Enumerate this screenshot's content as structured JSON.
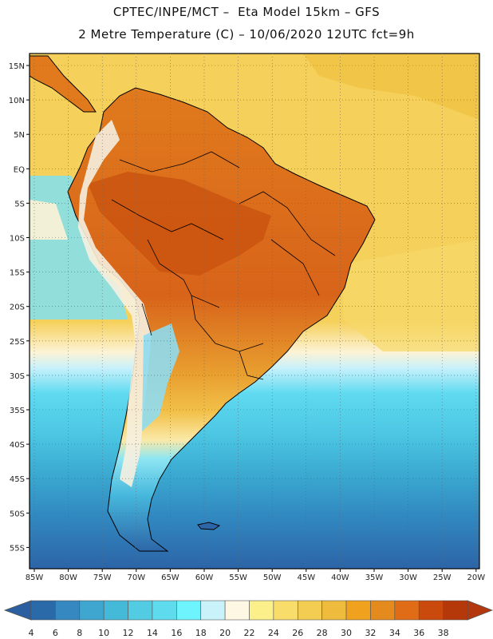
{
  "header": {
    "line1": "CPTEC/INPE/MCT –  Eta Model 15km – GFS",
    "line2": "2 Metre Temperature (C) – 10/06/2020 12UTC fct=9h"
  },
  "map": {
    "lat_labels": [
      "15N",
      "10N",
      "5N",
      "EQ",
      "5S",
      "10S",
      "15S",
      "20S",
      "25S",
      "30S",
      "35S",
      "40S",
      "45S",
      "50S",
      "55S"
    ],
    "lon_labels": [
      "85W",
      "80W",
      "75W",
      "70W",
      "65W",
      "60W",
      "55W",
      "50W",
      "45W",
      "40W",
      "35W",
      "30W",
      "25W",
      "20W"
    ],
    "colors": {
      "ocean_warm": "#f3cc52",
      "ocean_hot": "#eebf3c",
      "land_hot": "#e07a1d",
      "land_very_hot": "#c9530f",
      "ocean_mid": "#bfeefa",
      "ocean_cool": "#5fd7ec",
      "ocean_cold": "#3aa8d0",
      "ocean_colder": "#2f78b4",
      "coastline": "#000000"
    }
  },
  "colorbar": {
    "ticks": [
      "4",
      "6",
      "8",
      "10",
      "12",
      "14",
      "16",
      "18",
      "20",
      "22",
      "24",
      "26",
      "28",
      "30",
      "32",
      "34",
      "36",
      "38"
    ],
    "colors": [
      "#2b6aa8",
      "#3589c0",
      "#3ea6cf",
      "#45b9d8",
      "#52cce3",
      "#5fdbee",
      "#6ef4fc",
      "#c9f2fb",
      "#fdf7e4",
      "#fbf08a",
      "#f8dd6a",
      "#f3cc52",
      "#eebb3c",
      "#f0a21f",
      "#e58a1c",
      "#e06c17",
      "#c94a0c",
      "#b5380a"
    ],
    "left_arrow_color": "#2c5fa0",
    "right_arrow_color": "#b3380d"
  }
}
